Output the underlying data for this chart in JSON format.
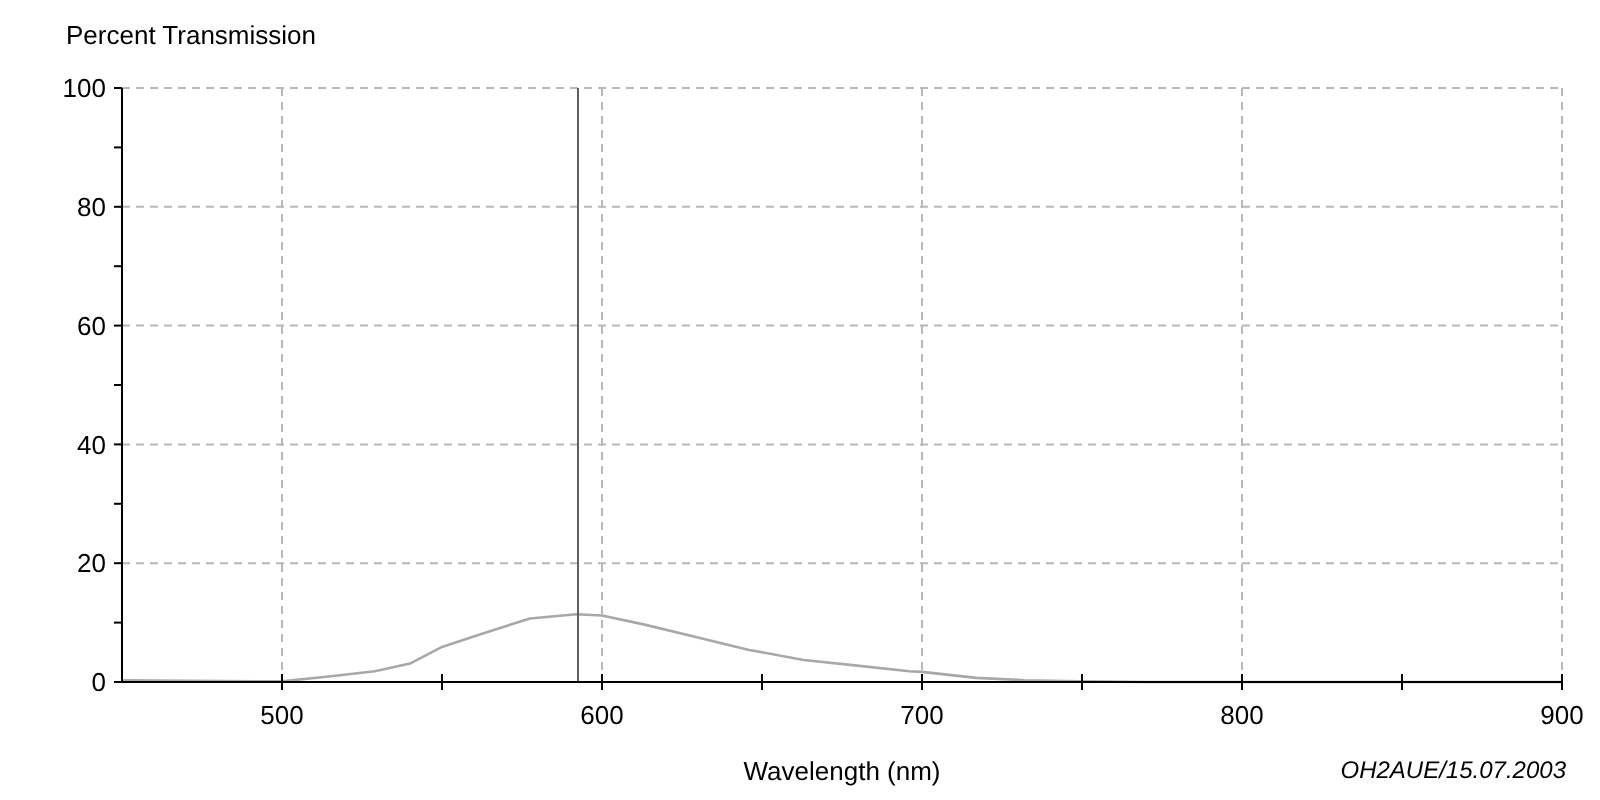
{
  "chart_data": {
    "type": "line",
    "ylabel": "Percent Transmission",
    "xlabel": "Wavelength (nm)",
    "annotations": [
      "OH2AUE/15.07.2003"
    ],
    "x": [
      450,
      500,
      516,
      529,
      540,
      550,
      563,
      577.5,
      592,
      600,
      613,
      629,
      646,
      663,
      679,
      696,
      700,
      717,
      732,
      749,
      770,
      800,
      850,
      900
    ],
    "series": [
      {
        "color": "#a8a8a8",
        "values": [
          0.3,
          0.1,
          1.0,
          1.8,
          3.1,
          5.9,
          8.2,
          10.7,
          11.4,
          11.2,
          9.7,
          7.6,
          5.4,
          3.7,
          2.8,
          1.8,
          1.7,
          0.7,
          0.3,
          0.1,
          0,
          0,
          0,
          0
        ]
      }
    ],
    "xlim": [
      450,
      900
    ],
    "ylim": [
      0,
      100
    ],
    "xticks": [
      500,
      {
        "value": 550,
        "label": null
      },
      600,
      {
        "value": 650,
        "label": null
      },
      700,
      {
        "value": 750,
        "label": null
      },
      800,
      {
        "value": 850,
        "label": null
      },
      900
    ],
    "yticks": [
      0,
      {
        "value": 10,
        "label": null
      },
      20,
      {
        "value": 30,
        "label": null
      },
      40,
      {
        "value": 50,
        "label": null
      },
      60,
      {
        "value": 70,
        "label": null
      },
      80,
      {
        "value": 90,
        "label": null
      },
      100
    ],
    "grid": true,
    "marker": "none",
    "line_style": "solid",
    "ref_lines": [
      {
        "axis": "x",
        "value": 592.5,
        "color": "#606060"
      }
    ]
  }
}
